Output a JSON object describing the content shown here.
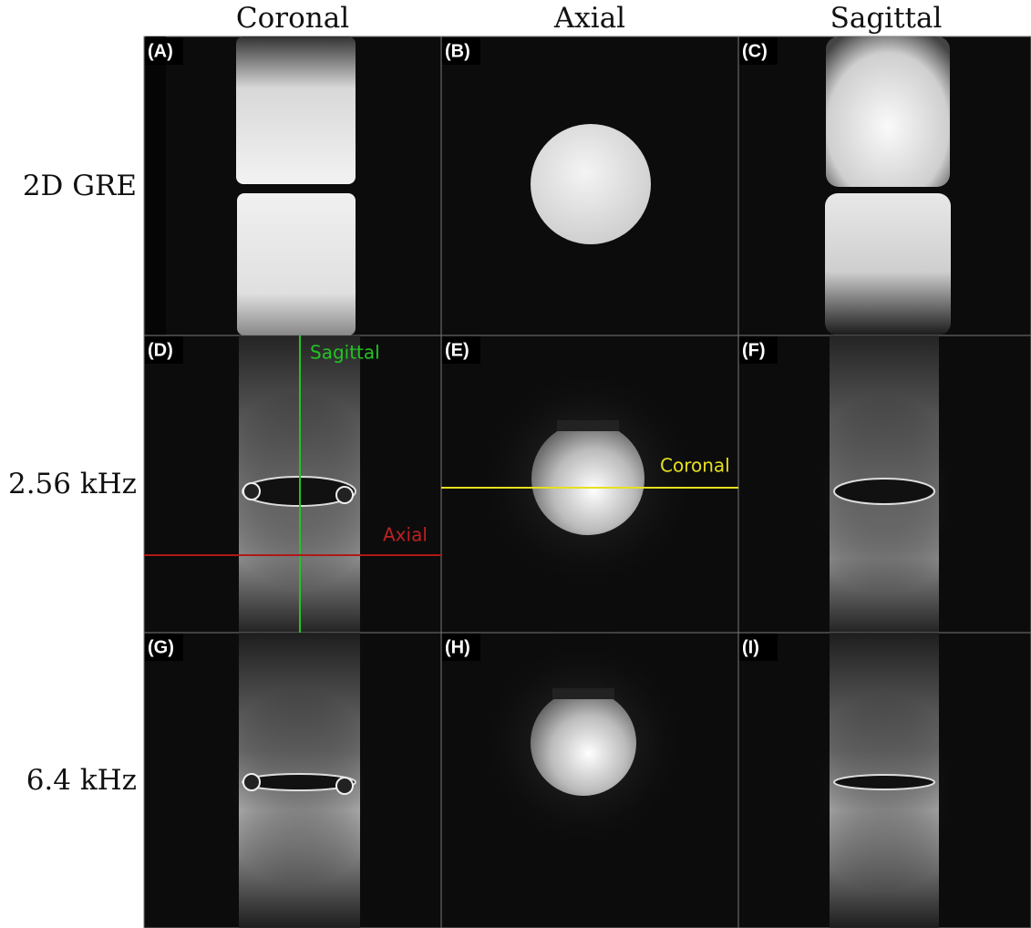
{
  "columns": [
    "Coronal",
    "Axial",
    "Sagittal"
  ],
  "rows": [
    {
      "label": "2D GRE",
      "panels": [
        "(A)",
        "(B)",
        "(C)"
      ]
    },
    {
      "label": "2.56 kHz",
      "panels": [
        "(D)",
        "(E)",
        "(F)"
      ]
    },
    {
      "label": "6.4 kHz",
      "panels": [
        "(G)",
        "(H)",
        "(I)"
      ]
    }
  ],
  "overlays": {
    "sagittal_line": "Sagittal",
    "axial_line": "Axial",
    "coronal_line": "Coronal"
  }
}
